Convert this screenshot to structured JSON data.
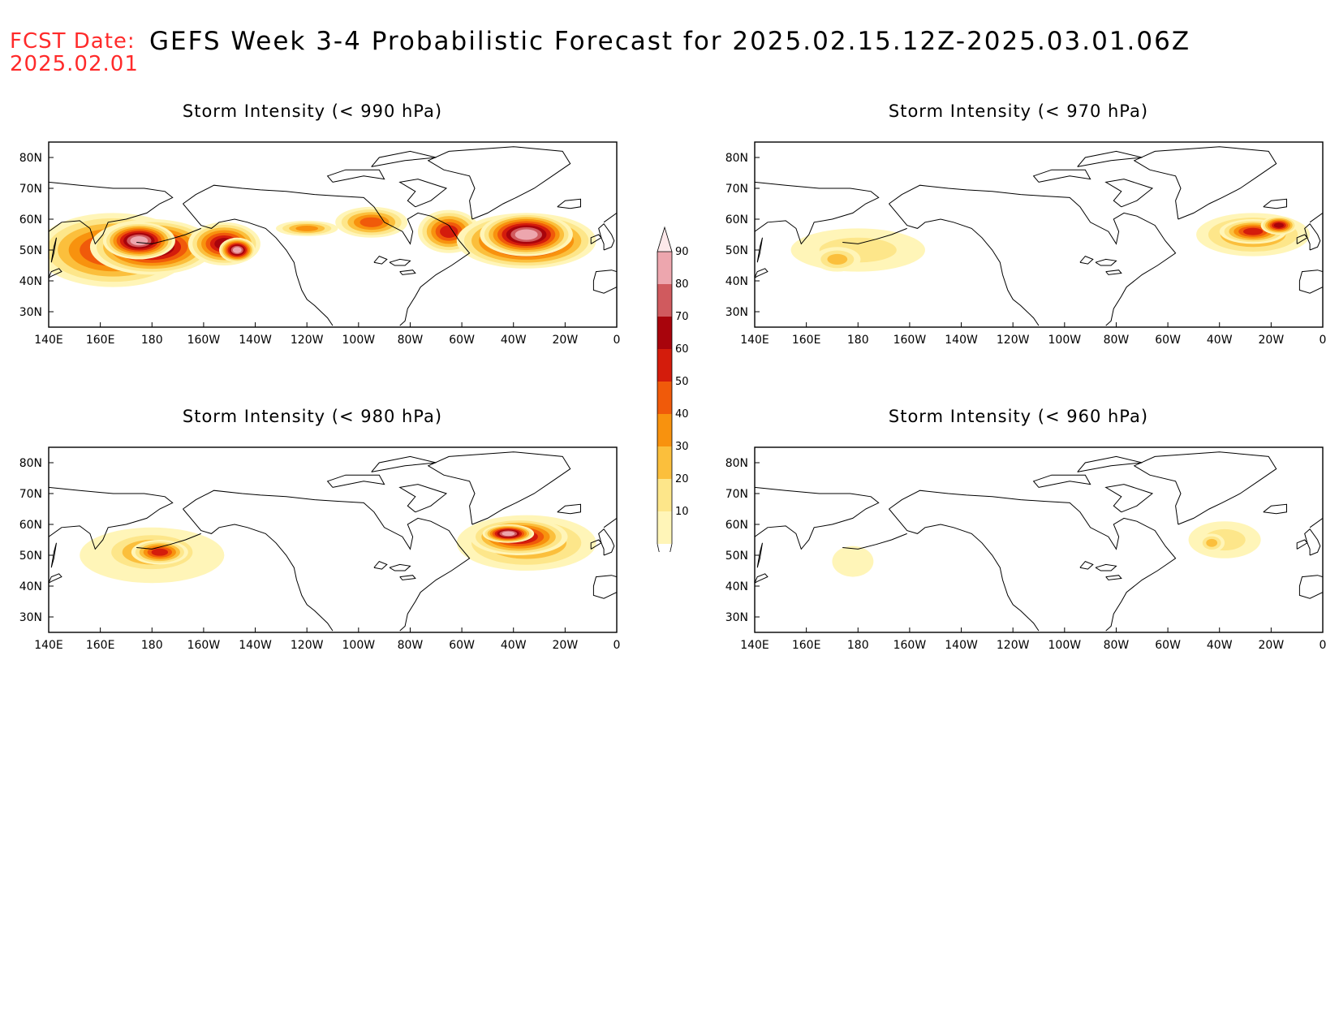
{
  "header": {
    "fcst_label": "FCST Date:",
    "fcst_date": "2025.02.01",
    "title": "GEFS Week 3-4 Probabilistic Forecast for 2025.02.15.12Z-2025.03.01.06Z"
  },
  "axes": {
    "lon_ticks": [
      "140E",
      "160E",
      "180",
      "160W",
      "140W",
      "120W",
      "100W",
      "80W",
      "60W",
      "40W",
      "20W",
      "0"
    ],
    "lat_ticks": [
      "80N",
      "70N",
      "60N",
      "50N",
      "40N",
      "30N"
    ]
  },
  "panels": [
    {
      "title": "Storm Intensity (< 990 hPa)",
      "threshold_hpa": 990
    },
    {
      "title": "Storm Intensity (< 970 hPa)",
      "threshold_hpa": 970
    },
    {
      "title": "Storm Intensity (< 980 hPa)",
      "threshold_hpa": 980
    },
    {
      "title": "Storm Intensity (< 960 hPa)",
      "threshold_hpa": 960
    }
  ],
  "colorbar": {
    "levels": [
      "10",
      "20",
      "30",
      "40",
      "50",
      "60",
      "70",
      "80",
      "90"
    ],
    "colors": [
      "#fff5b8",
      "#fde68a",
      "#fbbf3c",
      "#f8920e",
      "#f05a0a",
      "#d41c0c",
      "#a8040c",
      "#d05a5e",
      "#eda6ae",
      "#fde8ea"
    ]
  },
  "regions": [
    {
      "panel": 0,
      "blobs": [
        {
          "lon": 165,
          "lat": 50,
          "rlon": 30,
          "rlat": 12,
          "level": 5
        },
        {
          "lon": 180,
          "lat": 51,
          "rlon": 24,
          "rlat": 9,
          "level": 7
        },
        {
          "lon": 175,
          "lat": 53,
          "rlon": 14,
          "rlat": 6,
          "level": 8
        },
        {
          "lon": 208,
          "lat": 52,
          "rlon": 14,
          "rlat": 7,
          "level": 6
        },
        {
          "lon": 213,
          "lat": 50,
          "rlon": 7,
          "rlat": 4,
          "level": 8
        },
        {
          "lon": 240,
          "lat": 57,
          "rlon": 12,
          "rlat": 2.5,
          "level": 3
        },
        {
          "lon": 265,
          "lat": 59,
          "rlon": 14,
          "rlat": 5,
          "level": 4
        },
        {
          "lon": 295,
          "lat": 56,
          "rlon": 12,
          "rlat": 7,
          "level": 5
        },
        {
          "lon": 325,
          "lat": 53,
          "rlon": 27,
          "rlat": 9,
          "level": 7
        },
        {
          "lon": 325,
          "lat": 55,
          "rlon": 18,
          "rlat": 7,
          "level": 8
        }
      ]
    },
    {
      "panel": 1,
      "blobs": [
        {
          "lon": 180,
          "lat": 50,
          "rlon": 26,
          "rlat": 7,
          "level": 1
        },
        {
          "lon": 172,
          "lat": 47,
          "rlon": 9,
          "rlat": 4,
          "level": 2
        },
        {
          "lon": 333,
          "lat": 55,
          "rlon": 22,
          "rlat": 7,
          "level": 3
        },
        {
          "lon": 333,
          "lat": 56,
          "rlon": 13,
          "rlat": 4,
          "level": 5
        },
        {
          "lon": 343,
          "lat": 58,
          "rlon": 7,
          "rlat": 3,
          "level": 6
        }
      ]
    },
    {
      "panel": 2,
      "blobs": [
        {
          "lon": 180,
          "lat": 50,
          "rlon": 28,
          "rlat": 9,
          "level": 1
        },
        {
          "lon": 180,
          "lat": 51,
          "rlon": 20,
          "rlat": 7,
          "level": 3
        },
        {
          "lon": 183,
          "lat": 51,
          "rlon": 11,
          "rlat": 4,
          "level": 5
        },
        {
          "lon": 325,
          "lat": 54,
          "rlon": 27,
          "rlat": 9,
          "level": 3
        },
        {
          "lon": 322,
          "lat": 56,
          "rlon": 19,
          "rlat": 6,
          "level": 6
        },
        {
          "lon": 318,
          "lat": 57,
          "rlon": 10,
          "rlat": 3,
          "level": 8
        }
      ]
    },
    {
      "panel": 3,
      "blobs": [
        {
          "lon": 322,
          "lat": 55,
          "rlon": 14,
          "rlat": 6,
          "level": 1
        },
        {
          "lon": 317,
          "lat": 54,
          "rlon": 5,
          "rlat": 3,
          "level": 2
        },
        {
          "lon": 178,
          "lat": 48,
          "rlon": 8,
          "rlat": 5,
          "level": 0
        }
      ]
    }
  ]
}
